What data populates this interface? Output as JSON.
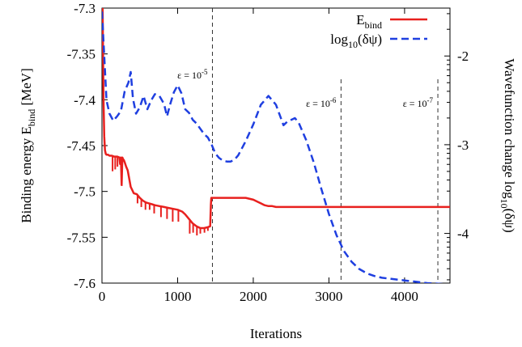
{
  "chart_data": {
    "type": "line",
    "title": "",
    "xlabel": "Iterations",
    "ylabel": {
      "main": "Binding energy E",
      "sub": "bind",
      "unit": " [MeV]"
    },
    "y2label": {
      "main": "Wavefunction change log",
      "sub": "10",
      "arg": "(δψ)"
    },
    "xlim": [
      0,
      4600
    ],
    "ylim": [
      -7.6,
      -7.3
    ],
    "y2lim": [
      -4.56,
      -1.46
    ],
    "x_ticks": [
      0,
      1000,
      2000,
      3000,
      4000
    ],
    "x_tick_labels": [
      "0",
      "1000",
      "2000",
      "3000",
      "4000"
    ],
    "y_ticks": [
      -7.3,
      -7.35,
      -7.4,
      -7.45,
      -7.5,
      -7.55,
      -7.6
    ],
    "y_tick_labels": [
      "-7.3",
      "-7.35",
      "-7.4",
      "-7.45",
      "-7.5",
      "-7.55",
      "-7.6"
    ],
    "y2_ticks": [
      -2,
      -3,
      -4
    ],
    "y2_tick_labels": [
      "-2",
      "-3",
      "-4"
    ],
    "grid": false,
    "legend_position": "top-right",
    "series": [
      {
        "name": "E",
        "name_sub": "bind",
        "axis": "left",
        "color": "#e8201e",
        "dash": "solid",
        "x": [
          0,
          10,
          20,
          30,
          40,
          50,
          60,
          80,
          100,
          130,
          160,
          200,
          230,
          240,
          250,
          260,
          270,
          280,
          290,
          300,
          320,
          340,
          380,
          420,
          460,
          500,
          540,
          580,
          620,
          660,
          700,
          760,
          820,
          880,
          940,
          1000,
          1060,
          1100,
          1150,
          1200,
          1250,
          1300,
          1350,
          1400,
          1430,
          1440,
          1445,
          1450,
          1500,
          1600,
          1700,
          1800,
          1900,
          2000,
          2050,
          2100,
          2150,
          2200,
          2250,
          2300,
          2400,
          2600,
          2800,
          3000,
          3200,
          3400,
          3600,
          3800,
          4000,
          4200,
          4400,
          4600
        ],
        "y": [
          -7.2,
          -7.31,
          -7.4,
          -7.44,
          -7.455,
          -7.459,
          -7.46,
          -7.46,
          -7.461,
          -7.461,
          -7.462,
          -7.462,
          -7.463,
          -7.47,
          -7.463,
          -7.493,
          -7.463,
          -7.465,
          -7.466,
          -7.468,
          -7.473,
          -7.477,
          -7.495,
          -7.502,
          -7.503,
          -7.507,
          -7.51,
          -7.512,
          -7.513,
          -7.514,
          -7.515,
          -7.516,
          -7.517,
          -7.518,
          -7.519,
          -7.52,
          -7.522,
          -7.525,
          -7.53,
          -7.535,
          -7.538,
          -7.54,
          -7.54,
          -7.539,
          -7.538,
          -7.514,
          -7.507,
          -7.507,
          -7.507,
          -7.507,
          -7.507,
          -7.507,
          -7.507,
          -7.509,
          -7.511,
          -7.513,
          -7.515,
          -7.516,
          -7.516,
          -7.517,
          -7.517,
          -7.517,
          -7.517,
          -7.517,
          -7.517,
          -7.517,
          -7.517,
          -7.517,
          -7.517,
          -7.517,
          -7.517,
          -7.517
        ],
        "dips": [
          {
            "x": 140,
            "y": -7.478
          },
          {
            "x": 175,
            "y": -7.476
          },
          {
            "x": 205,
            "y": -7.473
          },
          {
            "x": 262,
            "y": -7.494
          },
          {
            "x": 470,
            "y": -7.513
          },
          {
            "x": 520,
            "y": -7.517
          },
          {
            "x": 575,
            "y": -7.52
          },
          {
            "x": 630,
            "y": -7.52
          },
          {
            "x": 690,
            "y": -7.524
          },
          {
            "x": 780,
            "y": -7.528
          },
          {
            "x": 860,
            "y": -7.53
          },
          {
            "x": 935,
            "y": -7.533
          },
          {
            "x": 1010,
            "y": -7.533
          },
          {
            "x": 1160,
            "y": -7.546
          },
          {
            "x": 1205,
            "y": -7.545
          },
          {
            "x": 1255,
            "y": -7.548
          },
          {
            "x": 1300,
            "y": -7.546
          },
          {
            "x": 1355,
            "y": -7.545
          },
          {
            "x": 1400,
            "y": -7.543
          }
        ]
      },
      {
        "name": "log",
        "name_sub": "10",
        "name_arg": "(δψ)",
        "axis": "right",
        "color": "#1f3fe0",
        "dash": "dashed",
        "x": [
          0,
          30,
          60,
          100,
          150,
          200,
          250,
          300,
          350,
          380,
          410,
          450,
          500,
          550,
          600,
          650,
          700,
          760,
          820,
          860,
          900,
          950,
          1000,
          1050,
          1100,
          1150,
          1200,
          1250,
          1300,
          1350,
          1400,
          1450,
          1500,
          1550,
          1600,
          1650,
          1700,
          1750,
          1800,
          1900,
          2000,
          2100,
          2200,
          2300,
          2400,
          2450,
          2500,
          2550,
          2600,
          2700,
          2800,
          2900,
          3000,
          3100,
          3200,
          3300,
          3400,
          3500,
          3600,
          3700,
          3800,
          3900,
          4000,
          4100,
          4200,
          4300,
          4400,
          4500,
          4600
        ],
        "y": [
          -1.5,
          -2.0,
          -2.5,
          -2.65,
          -2.73,
          -2.68,
          -2.62,
          -2.4,
          -2.3,
          -2.18,
          -2.48,
          -2.65,
          -2.58,
          -2.45,
          -2.6,
          -2.5,
          -2.43,
          -2.45,
          -2.54,
          -2.68,
          -2.55,
          -2.41,
          -2.33,
          -2.42,
          -2.6,
          -2.64,
          -2.72,
          -2.76,
          -2.82,
          -2.88,
          -2.92,
          -3.0,
          -3.1,
          -3.15,
          -3.18,
          -3.19,
          -3.19,
          -3.17,
          -3.12,
          -2.96,
          -2.77,
          -2.55,
          -2.45,
          -2.55,
          -2.78,
          -2.74,
          -2.72,
          -2.7,
          -2.75,
          -2.95,
          -3.2,
          -3.5,
          -3.78,
          -4.02,
          -4.2,
          -4.32,
          -4.4,
          -4.45,
          -4.48,
          -4.5,
          -4.51,
          -4.52,
          -4.53,
          -4.54,
          -4.55,
          -4.56,
          -4.565,
          -4.57,
          -4.575
        ]
      }
    ],
    "vertical_markers": [
      {
        "x": 1460,
        "label": "ε = 10",
        "exp": "-5"
      },
      {
        "x": 3160,
        "label": "ε = 10",
        "exp": "-6"
      },
      {
        "x": 4440,
        "label": "ε = 10",
        "exp": "-7"
      }
    ]
  }
}
